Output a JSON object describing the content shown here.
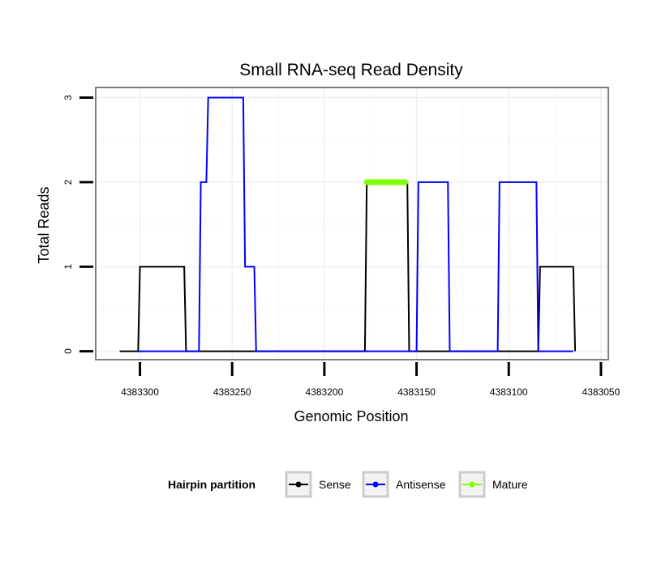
{
  "chart_data": {
    "type": "line",
    "title": "Small RNA-seq Read Density",
    "xlabel": "Genomic Position",
    "ylabel": "Total Reads",
    "xlim": [
      4383324,
      4383046
    ],
    "ylim": [
      -0.1,
      3.12
    ],
    "x_reversed": true,
    "x_ticks": [
      4383300,
      4383250,
      4383200,
      4383150,
      4383100,
      4383050
    ],
    "x_tick_labels": [
      "4383300",
      "4383250",
      "4383200",
      "4383150",
      "4383100",
      "4383050"
    ],
    "y_ticks": [
      0,
      1,
      2,
      3
    ],
    "y_tick_labels": [
      "0",
      "1",
      "2",
      "3"
    ],
    "grid": true,
    "legend_title": "Hairpin partition",
    "legend_position": "bottom",
    "series": [
      {
        "name": "Sense",
        "color": "#000000",
        "x": [
          4383311,
          4383301,
          4383300,
          4383276,
          4383275,
          4383178,
          4383177,
          4383155,
          4383154,
          4383084,
          4383083,
          4383065,
          4383064
        ],
        "y": [
          0,
          0,
          1,
          1,
          0,
          0,
          2,
          2,
          0,
          0,
          1,
          1,
          0
        ]
      },
      {
        "name": "Antisense",
        "color": "#0000ff",
        "x": [
          4383301,
          4383268,
          4383267,
          4383264,
          4383263,
          4383259,
          4383258,
          4383252,
          4383251,
          4383244,
          4383243,
          4383238,
          4383237,
          4383150,
          4383149,
          4383133,
          4383132,
          4383106,
          4383105,
          4383085,
          4383084,
          4383065
        ],
        "y": [
          0,
          0,
          2,
          2,
          3,
          3,
          3,
          3,
          3,
          3,
          1,
          1,
          0,
          0,
          2,
          2,
          0,
          0,
          2,
          2,
          0,
          0
        ]
      },
      {
        "name": "Mature",
        "color": "#7fff00",
        "x": [
          4383177,
          4383156
        ],
        "y": [
          2,
          2
        ]
      }
    ]
  }
}
